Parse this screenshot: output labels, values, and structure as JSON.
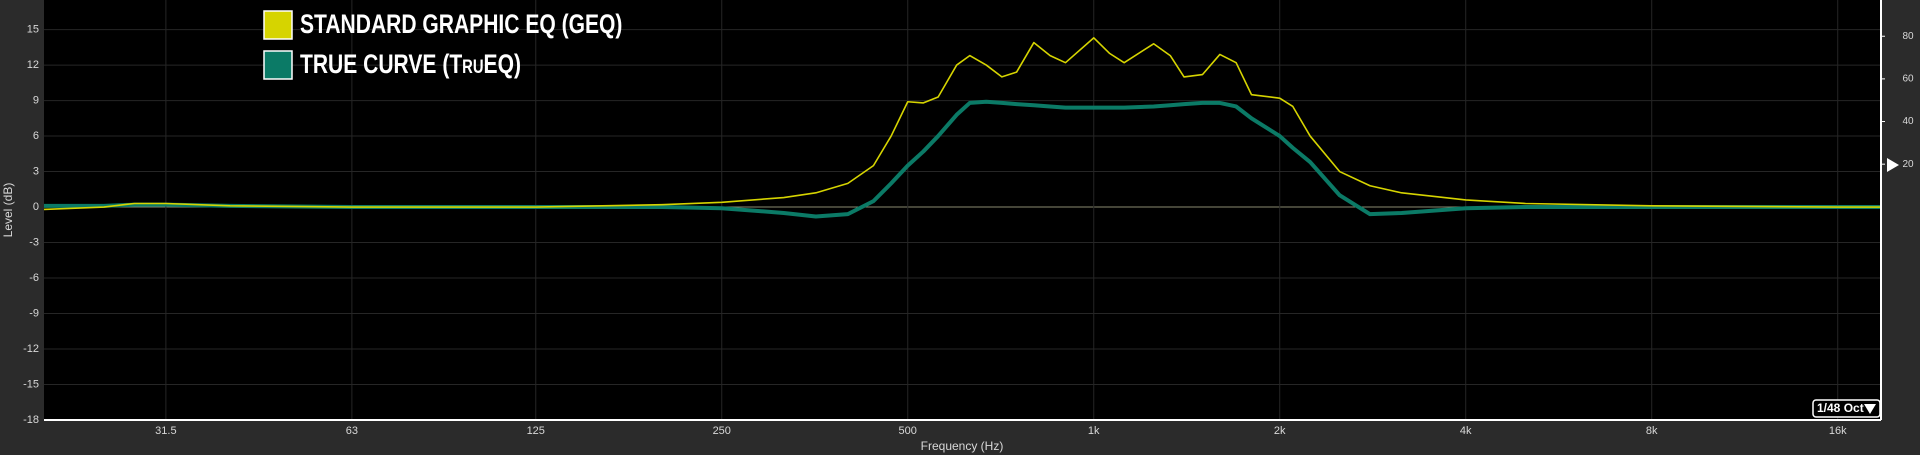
{
  "chart_data": {
    "type": "line",
    "x_label": "Frequency (Hz)",
    "y_label": "Level (dB)",
    "log_x": true,
    "grid": true,
    "legend_position": "upper left",
    "x": [
      20,
      25,
      28,
      31.5,
      40,
      63,
      125,
      200,
      250,
      315,
      355,
      400,
      440,
      470,
      500,
      530,
      560,
      600,
      630,
      670,
      710,
      750,
      800,
      850,
      900,
      1000,
      1060,
      1120,
      1250,
      1330,
      1400,
      1500,
      1600,
      1700,
      1800,
      2000,
      2100,
      2240,
      2500,
      2800,
      3150,
      4000,
      5000,
      8000,
      16000,
      18800
    ],
    "series": [
      {
        "name": "STANDARD GRAPHIC EQ (GEQ)",
        "color": "#d6d400",
        "values": [
          -0.2,
          0,
          0.3,
          0.3,
          0.1,
          0,
          0,
          0.2,
          0.4,
          0.8,
          1.2,
          2,
          3.5,
          6,
          8.9,
          8.8,
          9.3,
          12,
          12.8,
          12,
          11,
          11.4,
          13.9,
          12.8,
          12.2,
          14.3,
          13,
          12.2,
          13.8,
          12.8,
          11,
          11.2,
          12.9,
          12.2,
          9.5,
          9.2,
          8.5,
          6,
          3,
          1.8,
          1.2,
          0.6,
          0.3,
          0.1,
          0,
          0
        ]
      },
      {
        "name": "TRUE CURVE (TruEQ)",
        "color": "#0b7a66",
        "values": [
          0.1,
          0.1,
          0.2,
          0.2,
          0.1,
          0,
          0,
          0,
          -0.1,
          -0.5,
          -0.8,
          -0.6,
          0.5,
          2,
          3.5,
          4.7,
          6,
          7.8,
          8.8,
          8.9,
          8.8,
          8.7,
          8.6,
          8.5,
          8.4,
          8.4,
          8.4,
          8.4,
          8.5,
          8.6,
          8.7,
          8.8,
          8.8,
          8.5,
          7.5,
          6,
          5,
          3.8,
          1,
          -0.6,
          -0.5,
          -0.1,
          0,
          0,
          0,
          0
        ]
      }
    ],
    "xlim": [
      20,
      18800
    ],
    "xticks": [
      31.5,
      63,
      125,
      250,
      500,
      {
        "value": 1000,
        "label": "1k"
      },
      {
        "value": 2000,
        "label": "2k"
      },
      {
        "value": 4000,
        "label": "4k"
      },
      {
        "value": 8000,
        "label": "8k"
      },
      {
        "value": 16000,
        "label": "16k"
      }
    ],
    "ylim": [
      -18,
      17.5
    ],
    "yticks": [
      -18,
      -15,
      -12,
      -9,
      -6,
      -3,
      0,
      3,
      6,
      9,
      12,
      15
    ],
    "y2lim": [
      -100,
      97
    ],
    "y2ticks": [
      20,
      40,
      60,
      80
    ],
    "resolution_button": "1/48 Oct"
  }
}
